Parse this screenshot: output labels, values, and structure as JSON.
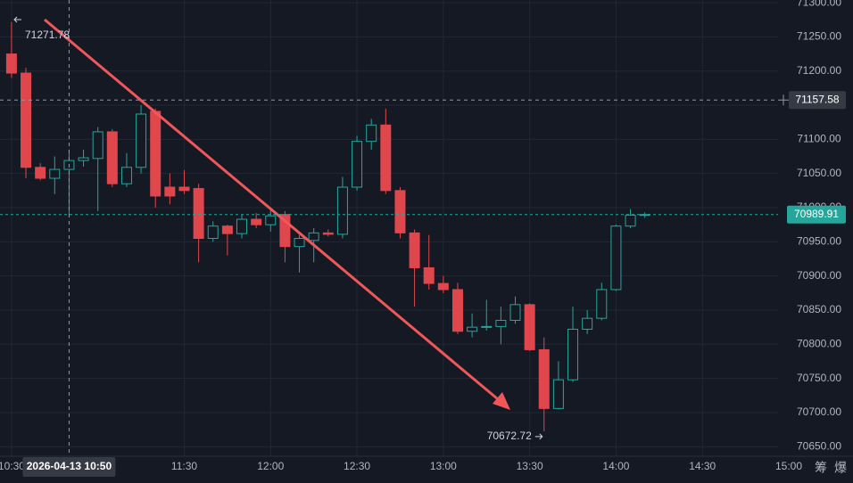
{
  "chart_data": {
    "type": "candlestick",
    "categories": [
      "10:30",
      "10:35",
      "10:40",
      "10:45",
      "10:50",
      "10:55",
      "11:00",
      "11:05",
      "11:10",
      "11:15",
      "11:20",
      "11:25",
      "11:30",
      "11:35",
      "11:40",
      "11:45",
      "11:50",
      "11:55",
      "12:00",
      "12:05",
      "12:10",
      "12:15",
      "12:20",
      "12:25",
      "12:30",
      "12:35",
      "12:40",
      "12:45",
      "12:50",
      "12:55",
      "13:00",
      "13:05",
      "13:10",
      "13:15",
      "13:20",
      "13:25",
      "13:30",
      "13:35",
      "13:40",
      "13:45",
      "13:50",
      "13:55",
      "14:00",
      "14:05",
      "14:10"
    ],
    "open": [
      71225,
      71197,
      71059,
      71043,
      71056,
      71069,
      71072,
      71111,
      71035,
      71059,
      71141,
      71030,
      71030,
      71028,
      70955,
      70973,
      70962,
      70983,
      70975,
      70990,
      70943,
      70952,
      70963,
      70961,
      71030,
      71097,
      71121,
      71025,
      70963,
      70912,
      70889,
      70880,
      70819,
      70825,
      70826,
      70835,
      70858,
      70792,
      70706,
      70748,
      70822,
      70838,
      70880,
      70973,
      70989
    ],
    "high": [
      71271.78,
      71205,
      71065,
      71075,
      71085,
      71085,
      71118,
      71115,
      71080,
      71150,
      71145,
      71050,
      71055,
      71035,
      70980,
      70975,
      70990,
      70992,
      71000,
      70995,
      70960,
      70970,
      70968,
      71045,
      71105,
      71130,
      71145,
      71030,
      70968,
      70960,
      70900,
      70890,
      70845,
      70865,
      70855,
      70870,
      70860,
      70810,
      70775,
      70855,
      70850,
      70890,
      70975,
      70998,
      70993
    ],
    "low": [
      71190,
      71043,
      71040,
      71020,
      70990,
      71060,
      70995,
      71030,
      71030,
      71050,
      71000,
      71005,
      71020,
      70920,
      70950,
      70930,
      70955,
      70970,
      70965,
      70920,
      70905,
      70920,
      70958,
      70955,
      71025,
      71085,
      71020,
      70955,
      70855,
      70880,
      70875,
      70815,
      70810,
      70820,
      70800,
      70830,
      70790,
      70672.72,
      70705,
      70745,
      70815,
      70835,
      70878,
      70970,
      70985
    ],
    "close": [
      71197,
      71059,
      71043,
      71056,
      71069,
      71073,
      71111,
      71035,
      71059,
      71137,
      71017,
      71017,
      71025,
      70955,
      70973,
      70962,
      70983,
      70975,
      70988,
      70943,
      70955,
      70963,
      70961,
      71030,
      71097,
      71121,
      71025,
      70963,
      70912,
      70889,
      70880,
      70819,
      70825,
      70826,
      70835,
      70858,
      70792,
      70706,
      70748,
      70822,
      70838,
      70880,
      70973,
      70989,
      70989.91
    ],
    "up_color": "#26a69a",
    "down_color": "#e0474c",
    "xlim": [
      "10:26",
      "15:00"
    ],
    "xticks": [
      "10:30",
      "11:30",
      "12:00",
      "12:30",
      "13:00",
      "13:30",
      "14:00",
      "14:30",
      "15:00"
    ],
    "ylim": [
      70636,
      71304
    ],
    "yticks": [
      {
        "value": 70650,
        "label": "70650.00"
      },
      {
        "value": 70700,
        "label": "70700.00"
      },
      {
        "value": 70750,
        "label": "70750.00"
      },
      {
        "value": 70800,
        "label": "70800.00"
      },
      {
        "value": 70850,
        "label": "70850.00"
      },
      {
        "value": 70900,
        "label": "70900.00"
      },
      {
        "value": 70950,
        "label": "70950.00"
      },
      {
        "value": 71000,
        "label": "71000.00"
      },
      {
        "value": 71050,
        "label": "71050.00"
      },
      {
        "value": 71100,
        "label": "71100.00"
      },
      {
        "value": 71150,
        "label": "71150.00"
      },
      {
        "value": 71200,
        "label": "71200.00"
      },
      {
        "value": 71250,
        "label": "71250.00"
      },
      {
        "value": 71300,
        "label": "71300.00"
      }
    ],
    "grid": true,
    "high_label": 71271.78,
    "low_label": 70672.72,
    "last_price": 70989.91,
    "crosshair_time": "2026-04-13 10:50",
    "crosshair_price": 71157.58
  },
  "toolbar_buttons": [
    "筹",
    "爆"
  ]
}
